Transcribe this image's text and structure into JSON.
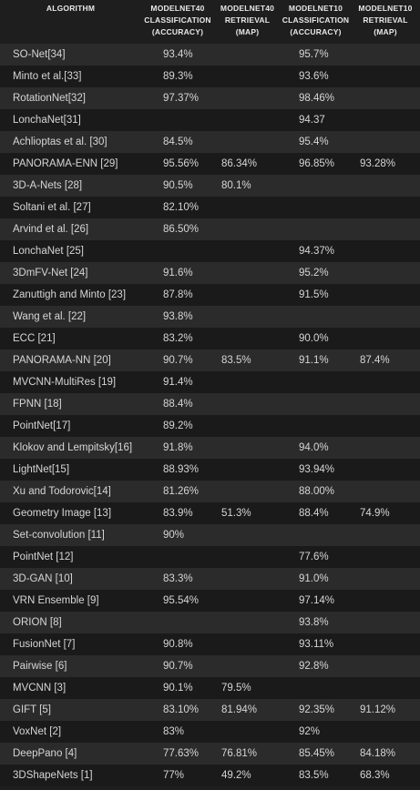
{
  "headers": [
    "ALGORITHM",
    "MODELNET40\nCLASSIFICATION\n(ACCURACY)",
    "MODELNET40\nRETRIEVAL\n(MAP)",
    "MODELNET10\nCLASSIFICATION\n(ACCURACY)",
    "MODELNET10\nRETRIEVAL\n(MAP)"
  ],
  "rows": [
    [
      "SO-Net[34]",
      "93.4%",
      "",
      "95.7%",
      ""
    ],
    [
      "Minto et al.[33]",
      "89.3%",
      "",
      "93.6%",
      ""
    ],
    [
      "RotationNet[32]",
      "97.37%",
      "",
      "98.46%",
      ""
    ],
    [
      "LonchaNet[31]",
      "",
      "",
      "94.37",
      ""
    ],
    [
      "Achlioptas et al. [30]",
      "84.5%",
      "",
      "95.4%",
      ""
    ],
    [
      "PANORAMA-ENN [29]",
      "95.56%",
      "86.34%",
      "96.85%",
      "93.28%"
    ],
    [
      "3D-A-Nets [28]",
      "90.5%",
      "80.1%",
      "",
      ""
    ],
    [
      "Soltani et al. [27]",
      "82.10%",
      "",
      "",
      ""
    ],
    [
      "Arvind et al. [26]",
      "86.50%",
      "",
      "",
      ""
    ],
    [
      "LonchaNet [25]",
      "",
      "",
      "94.37%",
      ""
    ],
    [
      "3DmFV-Net [24]",
      "91.6%",
      "",
      "95.2%",
      ""
    ],
    [
      "Zanuttigh and Minto [23]",
      "87.8%",
      "",
      "91.5%",
      ""
    ],
    [
      "Wang et al. [22]",
      "93.8%",
      "",
      "",
      ""
    ],
    [
      "ECC [21]",
      "83.2%",
      "",
      "90.0%",
      ""
    ],
    [
      "PANORAMA-NN [20]",
      "90.7%",
      "83.5%",
      "91.1%",
      "87.4%"
    ],
    [
      "MVCNN-MultiRes [19]",
      "91.4%",
      "",
      "",
      ""
    ],
    [
      "FPNN [18]",
      "88.4%",
      "",
      "",
      ""
    ],
    [
      "PointNet[17]",
      "89.2%",
      "",
      "",
      ""
    ],
    [
      "Klokov and Lempitsky[16]",
      "91.8%",
      "",
      "94.0%",
      ""
    ],
    [
      "LightNet[15]",
      "88.93%",
      "",
      "93.94%",
      ""
    ],
    [
      "Xu and Todorovic[14]",
      "81.26%",
      "",
      "88.00%",
      ""
    ],
    [
      "Geometry Image [13]",
      "83.9%",
      "51.3%",
      "88.4%",
      "74.9%"
    ],
    [
      "Set-convolution [11]",
      "90%",
      "",
      "",
      ""
    ],
    [
      "PointNet [12]",
      "",
      "",
      "77.6%",
      ""
    ],
    [
      "3D-GAN [10]",
      "83.3%",
      "",
      "91.0%",
      ""
    ],
    [
      "VRN Ensemble [9]",
      "95.54%",
      "",
      "97.14%",
      ""
    ],
    [
      "ORION [8]",
      "",
      "",
      "93.8%",
      ""
    ],
    [
      "FusionNet [7]",
      "90.8%",
      "",
      "93.11%",
      ""
    ],
    [
      "Pairwise [6]",
      "90.7%",
      "",
      "92.8%",
      ""
    ],
    [
      "MVCNN [3]",
      "90.1%",
      "79.5%",
      "",
      ""
    ],
    [
      "GIFT [5]",
      "83.10%",
      "81.94%",
      "92.35%",
      "91.12%"
    ],
    [
      "VoxNet [2]",
      "83%",
      "",
      "92%",
      ""
    ],
    [
      "DeepPano [4]",
      "77.63%",
      "76.81%",
      "85.45%",
      "84.18%"
    ],
    [
      "3DShapeNets [1]",
      "77%",
      "49.2%",
      "83.5%",
      "68.3%"
    ]
  ]
}
